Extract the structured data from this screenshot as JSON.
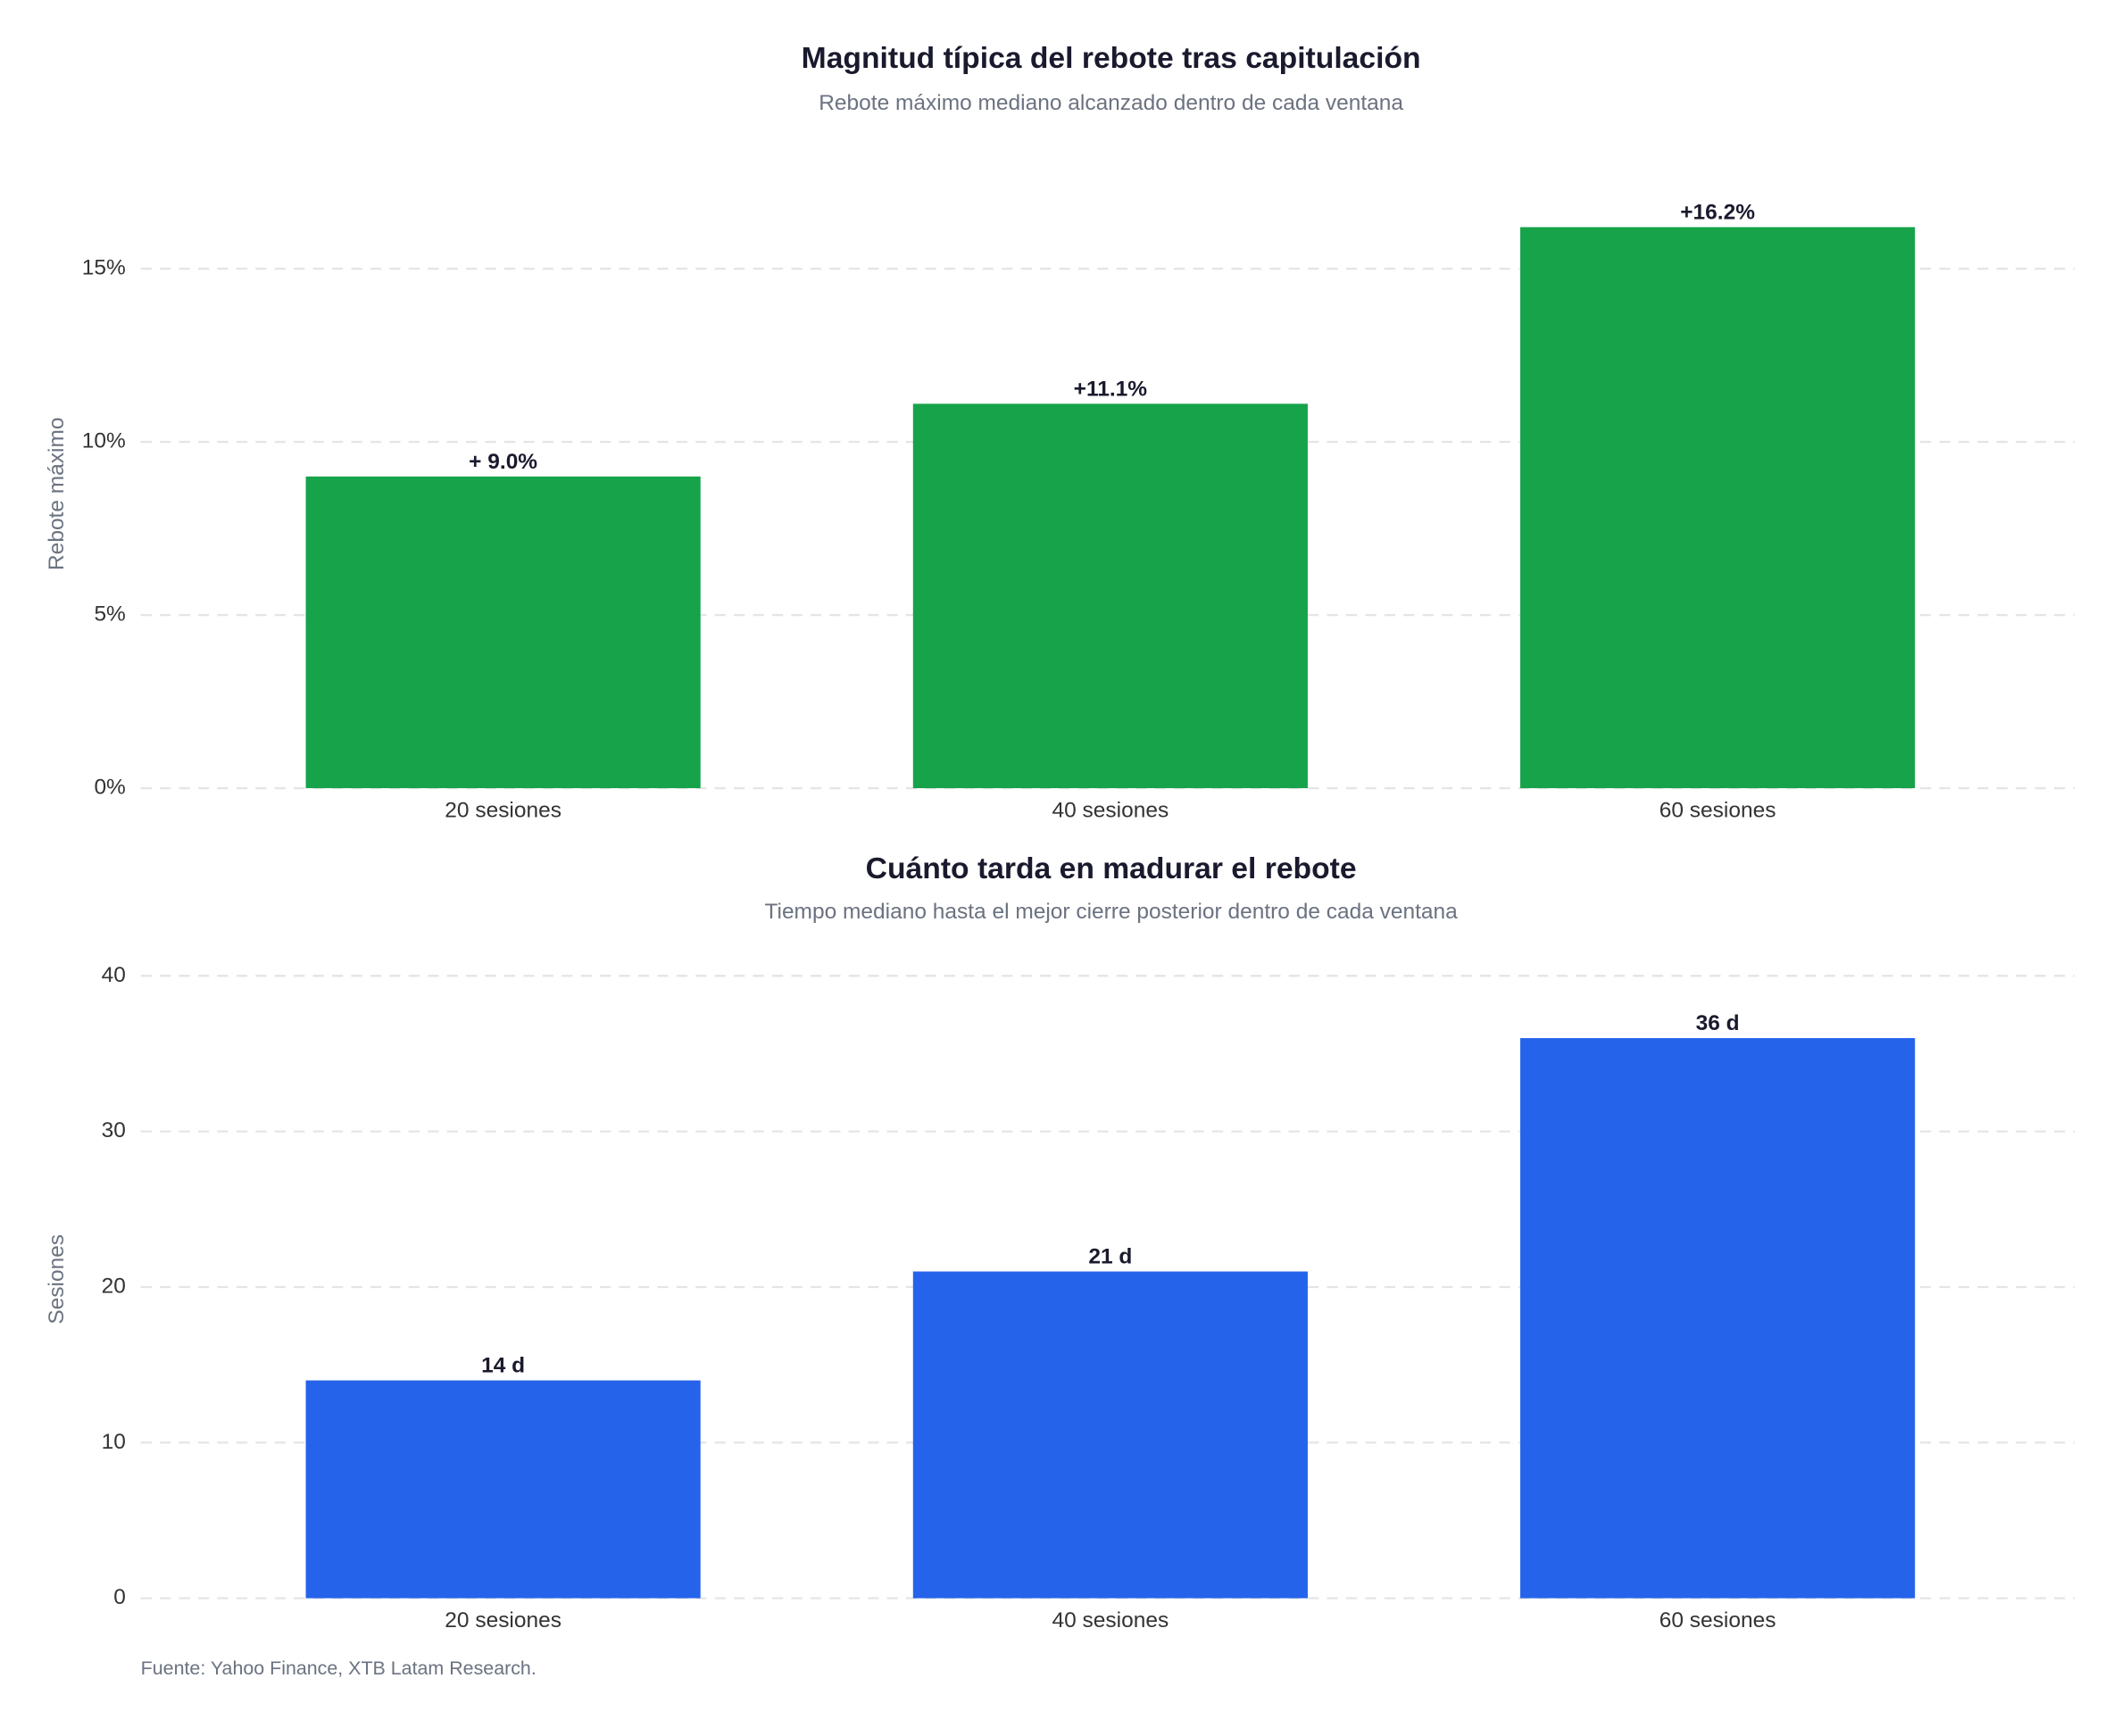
{
  "chart_data": [
    {
      "type": "bar",
      "title": "Magnitud típica del rebote tras capitulación",
      "subtitle": "Rebote máximo mediano alcanzado dentro de cada ventana",
      "ylabel": "Rebote máximo",
      "categories": [
        "20 sesiones",
        "40 sesiones",
        "60 sesiones"
      ],
      "values": [
        9.0,
        11.1,
        16.2
      ],
      "value_labels": [
        "+ 9.0%",
        "+11.1%",
        "+16.2%"
      ],
      "color": "#16a34a",
      "ylim": [
        0,
        17
      ],
      "yticks": [
        {
          "value": 0,
          "label": "0%"
        },
        {
          "value": 5,
          "label": "5%"
        },
        {
          "value": 10,
          "label": "10%"
        },
        {
          "value": 15,
          "label": "15%"
        }
      ],
      "grid": true
    },
    {
      "type": "bar",
      "title": "Cuánto tarda en madurar el rebote",
      "subtitle": "Tiempo mediano hasta el mejor cierre posterior dentro de cada ventana",
      "ylabel": "Sesiones",
      "categories": [
        "20 sesiones",
        "40 sesiones",
        "60 sesiones"
      ],
      "values": [
        14,
        21,
        36
      ],
      "value_labels": [
        "14 d",
        "21 d",
        "36 d"
      ],
      "color": "#2563eb",
      "ylim": [
        0,
        41
      ],
      "yticks": [
        0,
        10,
        20,
        30,
        40
      ],
      "grid": true
    }
  ],
  "source": "Fuente: Yahoo Finance, XTB Latam Research."
}
